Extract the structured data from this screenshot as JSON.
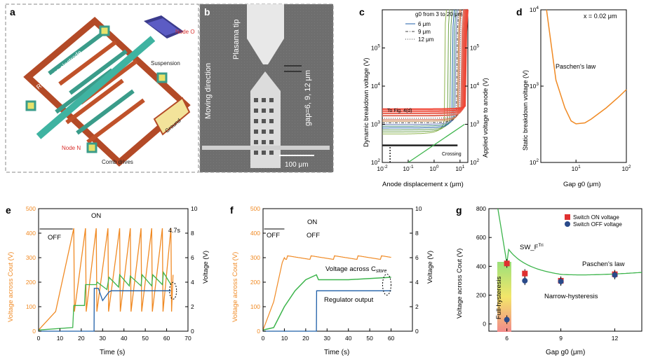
{
  "panels": {
    "a": {
      "letter": "a",
      "labels": {
        "reference": "Reference electrode",
        "cathode": "Cathode",
        "node_o": "Node O",
        "anode": "Anode",
        "suspension": "Suspension",
        "ground": "Ground",
        "node_n": "Node N",
        "comb": "Comb drives"
      }
    },
    "b": {
      "letter": "b",
      "labels": {
        "tip": "Plasama tip",
        "moving": "Moving direction",
        "gap": "gap=6, 9, 12 μm",
        "scale": "100 μm"
      }
    },
    "c": {
      "letter": "c",
      "labels": {
        "legend_title": "g0 from 3 to 20 μm",
        "l6": "6 μm",
        "l9": "9 μm",
        "l12": "12 μm",
        "to_fig": "To Fig. 4(d)",
        "crossing": "Crossing"
      }
    },
    "d": {
      "letter": "d",
      "labels": {
        "x": "x = 0.02 μm",
        "law": "Paschen's law"
      }
    },
    "e": {
      "letter": "e",
      "labels": {
        "on": "ON",
        "off": "OFF",
        "t": "4.7s"
      }
    },
    "f": {
      "letter": "f",
      "labels": {
        "on": "ON",
        "off1": "OFF",
        "off2": "OFF",
        "store": "Voltage across C",
        "store_sub": "store",
        "reg": "Regulator output"
      }
    },
    "g": {
      "letter": "g",
      "labels": {
        "legend_on": "Switch ON voltage",
        "legend_off": "Switch OFF voltage",
        "sw": "SW_F",
        "sw_sup": "Tri",
        "law": "Paschen's law",
        "narrow": "Narrow-hysteresis",
        "full": "Full-hysteresis"
      }
    }
  },
  "colors": {
    "orange": "#f08a24",
    "green": "#3cb44b",
    "blue": "#1f5fa8",
    "red": "#e03030",
    "navy": "#2a4a8a"
  },
  "chart_data": [
    {
      "panel": "c",
      "type": "line",
      "xlabel": "Anode displacement x (μm)",
      "ylabel": "Dynamic breakdown voltage (V)",
      "ylabel_right": "Applied voltage to anode (V)",
      "xscale": "log",
      "yscale": "log",
      "xlim": [
        0.01,
        20
      ],
      "ylim": [
        100,
        1000000
      ],
      "xticks": [
        "10-2",
        "10-1",
        "100",
        "101"
      ],
      "yticks": [
        "102",
        "103",
        "104",
        "105"
      ],
      "series": [
        {
          "name": "6 μm",
          "style": "solid",
          "asymptote_x": 6
        },
        {
          "name": "9 μm",
          "style": "dash-dot",
          "asymptote_x": 9
        },
        {
          "name": "12 μm",
          "style": "dotted",
          "asymptote_x": 12
        }
      ]
    },
    {
      "panel": "d",
      "type": "line",
      "xlabel": "Gap g0 (μm)",
      "ylabel": "Static breakdown voltage (V)",
      "xscale": "log",
      "yscale": "log",
      "xlim": [
        2,
        100
      ],
      "ylim": [
        100,
        10000
      ],
      "xticks": [
        "101",
        "102"
      ],
      "yticks": [
        "102",
        "103",
        "104"
      ],
      "series": [
        {
          "name": "Paschen's law",
          "x": [
            2.6,
            4,
            6,
            8,
            10,
            15,
            20,
            40,
            70,
            100
          ],
          "y": [
            10000,
            1200,
            520,
            350,
            320,
            330,
            370,
            520,
            720,
            900
          ]
        }
      ]
    },
    {
      "panel": "e",
      "type": "line",
      "xlabel": "Time (s)",
      "ylabel": "Voltage across Cout (V)",
      "ylabel_right": "Voltage (V)",
      "xlim": [
        0,
        70
      ],
      "ylim": [
        0,
        500
      ],
      "ylim_right": [
        0,
        10
      ],
      "xticks": [
        "0",
        "10",
        "20",
        "30",
        "40",
        "50",
        "60",
        "70"
      ],
      "yticks": [
        "0",
        "100",
        "200",
        "300",
        "400",
        "500"
      ],
      "yticks_right": [
        "0",
        "2",
        "4",
        "6",
        "8",
        "10"
      ],
      "series": [
        {
          "name": "Cout",
          "color": "orange",
          "peak_times": [
            16.5,
            22,
            27,
            32.5,
            38,
            43,
            48,
            53,
            58,
            62
          ],
          "peak": 420,
          "reset": 80
        },
        {
          "name": "green",
          "x": [
            0,
            16,
            16.5,
            21.5,
            22,
            27,
            27.5,
            32,
            33,
            37.5,
            38,
            42.5,
            43,
            48,
            48.5,
            53,
            53.5,
            58,
            58.5,
            62
          ],
          "y": [
            0.1,
            0.3,
            2.1,
            2.1,
            3.8,
            3.8,
            4.0,
            3.4,
            4.4,
            3.6,
            4.6,
            3.7,
            4.5,
            3.7,
            4.6,
            3.7,
            4.6,
            3.8,
            4.8,
            3.8
          ]
        },
        {
          "name": "blue",
          "x": [
            0,
            26,
            26.1,
            28,
            30,
            33,
            34,
            62
          ],
          "y": [
            0,
            0,
            3.5,
            3.5,
            2.5,
            3.2,
            3.3,
            3.3
          ]
        }
      ]
    },
    {
      "panel": "f",
      "type": "line",
      "xlabel": "Time (s)",
      "ylabel": "Voltage across Cout (V)",
      "ylabel_right": "Voltage (V)",
      "xlim": [
        0,
        70
      ],
      "ylim": [
        0,
        500
      ],
      "ylim_right": [
        0,
        10
      ],
      "xticks": [
        "0",
        "10",
        "20",
        "30",
        "40",
        "50",
        "60"
      ],
      "yticks": [
        "0",
        "100",
        "200",
        "300",
        "400",
        "500"
      ],
      "yticks_right": [
        "0",
        "2",
        "4",
        "6",
        "8",
        "10"
      ],
      "series": [
        {
          "name": "Cout",
          "color": "orange",
          "x": [
            0,
            5,
            9,
            10,
            60
          ],
          "y": [
            5,
            120,
            280,
            300,
            300
          ]
        },
        {
          "name": "Voltage across C_store",
          "x": [
            0,
            5,
            10,
            15,
            20,
            25,
            26,
            40,
            60
          ],
          "y": [
            0.1,
            0.3,
            2.0,
            3.3,
            4.2,
            4.6,
            4.2,
            4.2,
            4.4
          ]
        },
        {
          "name": "Regulator output",
          "x": [
            0,
            25,
            25.1,
            60
          ],
          "y": [
            0,
            0,
            3.3,
            3.3
          ]
        }
      ]
    },
    {
      "panel": "g",
      "type": "scatter",
      "xlabel": "Gap g0 (μm)",
      "ylabel": "Voltage across Cout (V)",
      "xlim": [
        5,
        13.5
      ],
      "ylim": [
        -50,
        800
      ],
      "xticks": [
        "6",
        "9",
        "12"
      ],
      "yticks": [
        "0",
        "200",
        "400",
        "600",
        "800"
      ],
      "series": [
        {
          "name": "Switch ON voltage",
          "x": [
            6,
            7,
            9,
            12
          ],
          "y": [
            420,
            350,
            300,
            345
          ]
        },
        {
          "name": "Switch OFF voltage",
          "x": [
            6,
            7,
            9,
            12
          ],
          "y": [
            30,
            300,
            295,
            340
          ]
        }
      ]
    }
  ]
}
